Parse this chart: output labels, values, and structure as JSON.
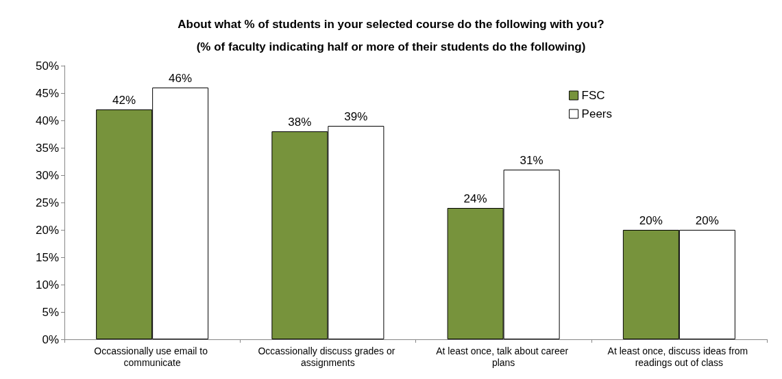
{
  "chart_data": {
    "type": "bar",
    "title": "About what % of students in your selected course do the following with you?",
    "subtitle": "(% of faculty indicating half or more of their students do the following)",
    "categories": [
      "Occassionally use email to communicate",
      "Occassionally discuss grades or assignments",
      "At least once, talk about career plans",
      "At least once, discuss ideas from readings out of class"
    ],
    "series": [
      {
        "name": "FSC",
        "color": "#77933c",
        "values": [
          42,
          38,
          24,
          20
        ],
        "value_labels": [
          "42%",
          "38%",
          "24%",
          "20%"
        ]
      },
      {
        "name": "Peers",
        "color": "#ffffff",
        "values": [
          46,
          39,
          31,
          20
        ],
        "value_labels": [
          "46%",
          "39%",
          "31%",
          "20%"
        ]
      }
    ],
    "ylim": [
      0,
      50
    ],
    "yticks": [
      {
        "value": 0,
        "label": "0%"
      },
      {
        "value": 5,
        "label": "5%"
      },
      {
        "value": 10,
        "label": "10%"
      },
      {
        "value": 15,
        "label": "15%"
      },
      {
        "value": 20,
        "label": "20%"
      },
      {
        "value": 25,
        "label": "25%"
      },
      {
        "value": 30,
        "label": "30%"
      },
      {
        "value": 35,
        "label": "35%"
      },
      {
        "value": 40,
        "label": "40%"
      },
      {
        "value": 45,
        "label": "45%"
      },
      {
        "value": 50,
        "label": "50%"
      }
    ],
    "grid": false,
    "legend": "top right"
  }
}
